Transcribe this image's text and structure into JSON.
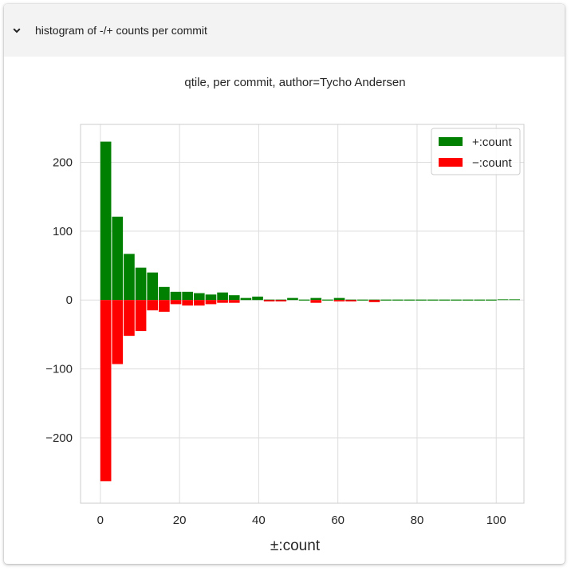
{
  "panel": {
    "title": "histogram of -/+ counts per commit",
    "expanded": true,
    "chevron_icon": "chevron-down-icon"
  },
  "chart_data": {
    "type": "bar",
    "title": "qtile, per commit, author=Tycho Andersen",
    "xlabel": "±:count",
    "ylabel": "",
    "xlim": [
      -5,
      107
    ],
    "ylim": [
      -295,
      255
    ],
    "xticks": [
      0,
      20,
      40,
      60,
      80,
      100
    ],
    "yticks": [
      200,
      100,
      0,
      -100,
      -200
    ],
    "xtick_labels": [
      "0",
      "20",
      "40",
      "60",
      "80",
      "100"
    ],
    "ytick_labels": [
      "200",
      "100",
      "0",
      "−100",
      "−200"
    ],
    "grid": true,
    "legend_position": "top-right",
    "bin_width": 2.95,
    "bin_starts": [
      0,
      2.95,
      5.9,
      8.85,
      11.8,
      14.75,
      17.7,
      20.65,
      23.6,
      26.55,
      29.5,
      32.45,
      35.4,
      38.35,
      41.3,
      44.25,
      47.2,
      50.15,
      53.1,
      56.05,
      59,
      61.95,
      64.9,
      67.85,
      70.8,
      73.75,
      76.7,
      79.65,
      82.6,
      85.55,
      88.5,
      91.45,
      94.4,
      97.35,
      100.3,
      103.25
    ],
    "series": [
      {
        "name": "+:count",
        "color": "#008000",
        "values": [
          230,
          121,
          67,
          47,
          40,
          19,
          12,
          12,
          10,
          8,
          11,
          7,
          3,
          5,
          0,
          0,
          3,
          0,
          3,
          0,
          3,
          0,
          0,
          0,
          0,
          0,
          0,
          0,
          0,
          0,
          0,
          0,
          0,
          0,
          1,
          1
        ]
      },
      {
        "name": "−:count",
        "color": "#ff0000",
        "values": [
          -263,
          -93,
          -52,
          -45,
          -15,
          -17,
          -6,
          -8,
          -8,
          -6,
          -4,
          -4,
          0,
          0,
          -2,
          -2,
          0,
          0,
          -4,
          0,
          -2,
          -2,
          0,
          -3,
          0,
          0,
          0,
          0,
          0,
          0,
          0,
          0,
          0,
          0,
          0,
          0
        ]
      }
    ]
  }
}
